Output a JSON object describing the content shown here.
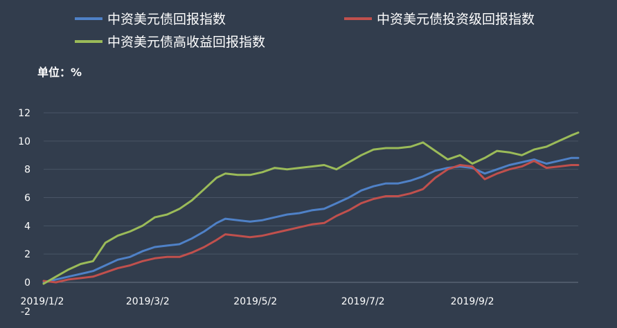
{
  "chart_data": {
    "type": "line",
    "unit_label": "单位：%",
    "legend_placement": "top",
    "grid": true,
    "x_tick_labels": [
      "2019/1/2",
      "2019/3/2",
      "2019/5/2",
      "2019/7/2",
      "2019/9/2"
    ],
    "x_tick_dates": [
      "2019-01-02",
      "2019-03-02",
      "2019-05-02",
      "2019-07-02",
      "2019-09-02"
    ],
    "x_range": [
      "2019-01-02",
      "2019-11-01"
    ],
    "y_ticks": [
      -2,
      0,
      2,
      4,
      6,
      8,
      10,
      12
    ],
    "ylim": [
      -2,
      12
    ],
    "series": [
      {
        "name": "中资美元债回报指数",
        "color": "#4f81c7",
        "points": [
          [
            "2019-01-02",
            0.0
          ],
          [
            "2019-01-09",
            0.2
          ],
          [
            "2019-01-16",
            0.4
          ],
          [
            "2019-01-23",
            0.6
          ],
          [
            "2019-01-30",
            0.8
          ],
          [
            "2019-02-06",
            1.2
          ],
          [
            "2019-02-13",
            1.6
          ],
          [
            "2019-02-20",
            1.8
          ],
          [
            "2019-02-27",
            2.2
          ],
          [
            "2019-03-06",
            2.5
          ],
          [
            "2019-03-13",
            2.6
          ],
          [
            "2019-03-20",
            2.7
          ],
          [
            "2019-03-27",
            3.1
          ],
          [
            "2019-04-03",
            3.6
          ],
          [
            "2019-04-10",
            4.2
          ],
          [
            "2019-04-15",
            4.5
          ],
          [
            "2019-04-22",
            4.4
          ],
          [
            "2019-04-29",
            4.3
          ],
          [
            "2019-05-06",
            4.4
          ],
          [
            "2019-05-13",
            4.6
          ],
          [
            "2019-05-20",
            4.8
          ],
          [
            "2019-05-27",
            4.9
          ],
          [
            "2019-06-03",
            5.1
          ],
          [
            "2019-06-10",
            5.2
          ],
          [
            "2019-06-17",
            5.6
          ],
          [
            "2019-06-24",
            6.0
          ],
          [
            "2019-07-01",
            6.5
          ],
          [
            "2019-07-08",
            6.8
          ],
          [
            "2019-07-15",
            7.0
          ],
          [
            "2019-07-22",
            7.0
          ],
          [
            "2019-07-29",
            7.2
          ],
          [
            "2019-08-05",
            7.5
          ],
          [
            "2019-08-12",
            7.9
          ],
          [
            "2019-08-19",
            8.1
          ],
          [
            "2019-08-26",
            8.2
          ],
          [
            "2019-09-02",
            8.1
          ],
          [
            "2019-09-09",
            7.7
          ],
          [
            "2019-09-16",
            8.0
          ],
          [
            "2019-09-23",
            8.3
          ],
          [
            "2019-09-30",
            8.5
          ],
          [
            "2019-10-07",
            8.7
          ],
          [
            "2019-10-14",
            8.4
          ],
          [
            "2019-10-21",
            8.6
          ],
          [
            "2019-10-28",
            8.8
          ],
          [
            "2019-11-01",
            8.8
          ]
        ]
      },
      {
        "name": "中资美元债投资级回报指数",
        "color": "#c0504d",
        "points": [
          [
            "2019-01-02",
            0.1
          ],
          [
            "2019-01-09",
            0.0
          ],
          [
            "2019-01-16",
            0.2
          ],
          [
            "2019-01-23",
            0.3
          ],
          [
            "2019-01-30",
            0.4
          ],
          [
            "2019-02-06",
            0.7
          ],
          [
            "2019-02-13",
            1.0
          ],
          [
            "2019-02-20",
            1.2
          ],
          [
            "2019-02-27",
            1.5
          ],
          [
            "2019-03-06",
            1.7
          ],
          [
            "2019-03-13",
            1.8
          ],
          [
            "2019-03-20",
            1.8
          ],
          [
            "2019-03-27",
            2.1
          ],
          [
            "2019-04-03",
            2.5
          ],
          [
            "2019-04-10",
            3.0
          ],
          [
            "2019-04-15",
            3.4
          ],
          [
            "2019-04-22",
            3.3
          ],
          [
            "2019-04-29",
            3.2
          ],
          [
            "2019-05-06",
            3.3
          ],
          [
            "2019-05-13",
            3.5
          ],
          [
            "2019-05-20",
            3.7
          ],
          [
            "2019-05-27",
            3.9
          ],
          [
            "2019-06-03",
            4.1
          ],
          [
            "2019-06-10",
            4.2
          ],
          [
            "2019-06-17",
            4.7
          ],
          [
            "2019-06-24",
            5.1
          ],
          [
            "2019-07-01",
            5.6
          ],
          [
            "2019-07-08",
            5.9
          ],
          [
            "2019-07-15",
            6.1
          ],
          [
            "2019-07-22",
            6.1
          ],
          [
            "2019-07-29",
            6.3
          ],
          [
            "2019-08-05",
            6.6
          ],
          [
            "2019-08-12",
            7.4
          ],
          [
            "2019-08-19",
            8.0
          ],
          [
            "2019-08-26",
            8.3
          ],
          [
            "2019-09-02",
            8.2
          ],
          [
            "2019-09-09",
            7.3
          ],
          [
            "2019-09-16",
            7.7
          ],
          [
            "2019-09-23",
            8.0
          ],
          [
            "2019-09-30",
            8.2
          ],
          [
            "2019-10-07",
            8.6
          ],
          [
            "2019-10-14",
            8.1
          ],
          [
            "2019-10-21",
            8.2
          ],
          [
            "2019-10-28",
            8.3
          ],
          [
            "2019-11-01",
            8.3
          ]
        ]
      },
      {
        "name": "中资美元债高收益回报指数",
        "color": "#9bbb59",
        "points": [
          [
            "2019-01-02",
            -0.1
          ],
          [
            "2019-01-09",
            0.4
          ],
          [
            "2019-01-16",
            0.9
          ],
          [
            "2019-01-23",
            1.3
          ],
          [
            "2019-01-30",
            1.5
          ],
          [
            "2019-02-06",
            2.8
          ],
          [
            "2019-02-13",
            3.3
          ],
          [
            "2019-02-20",
            3.6
          ],
          [
            "2019-02-27",
            4.0
          ],
          [
            "2019-03-06",
            4.6
          ],
          [
            "2019-03-13",
            4.8
          ],
          [
            "2019-03-20",
            5.2
          ],
          [
            "2019-03-27",
            5.8
          ],
          [
            "2019-04-03",
            6.6
          ],
          [
            "2019-04-10",
            7.4
          ],
          [
            "2019-04-15",
            7.7
          ],
          [
            "2019-04-22",
            7.6
          ],
          [
            "2019-04-29",
            7.6
          ],
          [
            "2019-05-06",
            7.8
          ],
          [
            "2019-05-13",
            8.1
          ],
          [
            "2019-05-20",
            8.0
          ],
          [
            "2019-05-27",
            8.1
          ],
          [
            "2019-06-03",
            8.2
          ],
          [
            "2019-06-10",
            8.3
          ],
          [
            "2019-06-17",
            8.0
          ],
          [
            "2019-06-24",
            8.5
          ],
          [
            "2019-07-01",
            9.0
          ],
          [
            "2019-07-08",
            9.4
          ],
          [
            "2019-07-15",
            9.5
          ],
          [
            "2019-07-22",
            9.5
          ],
          [
            "2019-07-29",
            9.6
          ],
          [
            "2019-08-05",
            9.9
          ],
          [
            "2019-08-12",
            9.3
          ],
          [
            "2019-08-19",
            8.7
          ],
          [
            "2019-08-26",
            9.0
          ],
          [
            "2019-09-02",
            8.4
          ],
          [
            "2019-09-09",
            8.8
          ],
          [
            "2019-09-16",
            9.3
          ],
          [
            "2019-09-23",
            9.2
          ],
          [
            "2019-09-30",
            9.0
          ],
          [
            "2019-10-07",
            9.4
          ],
          [
            "2019-10-14",
            9.6
          ],
          [
            "2019-10-21",
            10.0
          ],
          [
            "2019-10-28",
            10.4
          ],
          [
            "2019-11-01",
            10.6
          ]
        ]
      }
    ]
  }
}
